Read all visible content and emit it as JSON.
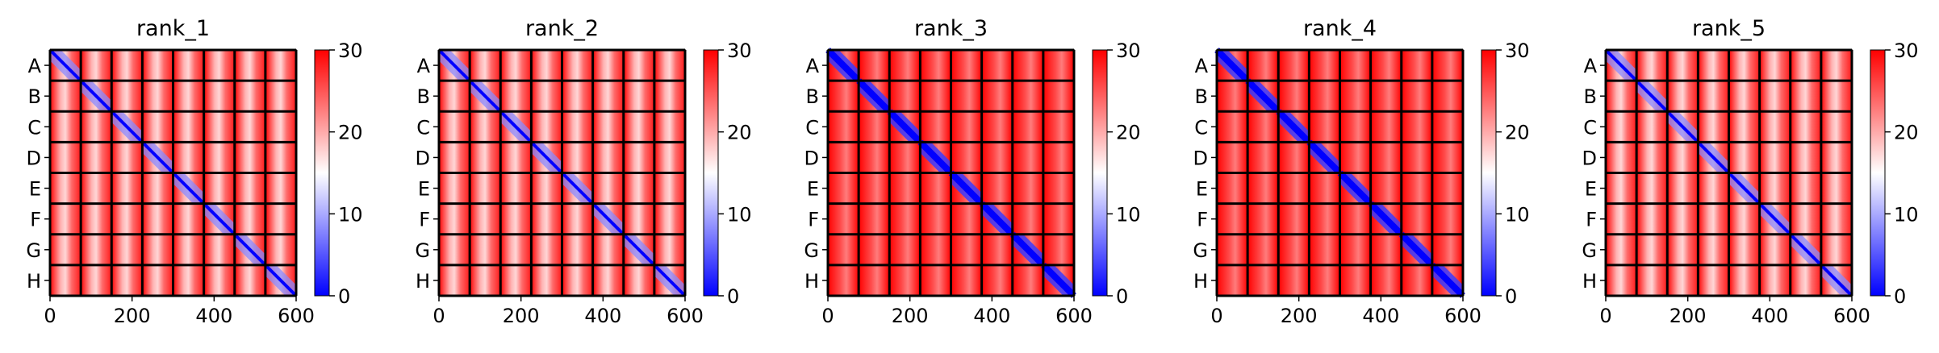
{
  "chart_data": [
    {
      "type": "heatmap",
      "title": "rank_1",
      "xticks": [
        "0",
        "200",
        "400",
        "600"
      ],
      "xlim": [
        0,
        600
      ],
      "yticks": [
        "A",
        "B",
        "C",
        "D",
        "E",
        "F",
        "G",
        "H"
      ],
      "colorbar": {
        "ticks": [
          "0",
          "10",
          "20",
          "30"
        ],
        "range": [
          0,
          30
        ],
        "colormap": "bwr"
      },
      "blocks": 8,
      "diag_strength": 0.55
    },
    {
      "type": "heatmap",
      "title": "rank_2",
      "xticks": [
        "0",
        "200",
        "400",
        "600"
      ],
      "xlim": [
        0,
        600
      ],
      "yticks": [
        "A",
        "B",
        "C",
        "D",
        "E",
        "F",
        "G",
        "H"
      ],
      "colorbar": {
        "ticks": [
          "0",
          "10",
          "20",
          "30"
        ],
        "range": [
          0,
          30
        ],
        "colormap": "bwr"
      },
      "blocks": 8,
      "diag_strength": 0.55
    },
    {
      "type": "heatmap",
      "title": "rank_3",
      "xticks": [
        "0",
        "200",
        "400",
        "600"
      ],
      "xlim": [
        0,
        600
      ],
      "yticks": [
        "A",
        "B",
        "C",
        "D",
        "E",
        "F",
        "G",
        "H"
      ],
      "colorbar": {
        "ticks": [
          "0",
          "10",
          "20",
          "30"
        ],
        "range": [
          0,
          30
        ],
        "colormap": "bwr"
      },
      "blocks": 8,
      "diag_strength": 1.0
    },
    {
      "type": "heatmap",
      "title": "rank_4",
      "xticks": [
        "0",
        "200",
        "400",
        "600"
      ],
      "xlim": [
        0,
        600
      ],
      "yticks": [
        "A",
        "B",
        "C",
        "D",
        "E",
        "F",
        "G",
        "H"
      ],
      "colorbar": {
        "ticks": [
          "0",
          "10",
          "20",
          "30"
        ],
        "range": [
          0,
          30
        ],
        "colormap": "bwr"
      },
      "blocks": 8,
      "diag_strength": 1.0
    },
    {
      "type": "heatmap",
      "title": "rank_5",
      "xticks": [
        "0",
        "200",
        "400",
        "600"
      ],
      "xlim": [
        0,
        600
      ],
      "yticks": [
        "A",
        "B",
        "C",
        "D",
        "E",
        "F",
        "G",
        "H"
      ],
      "colorbar": {
        "ticks": [
          "0",
          "10",
          "20",
          "30"
        ],
        "range": [
          0,
          30
        ],
        "colormap": "bwr"
      },
      "blocks": 8,
      "diag_strength": 0.55
    }
  ],
  "colors": {
    "high": "#ff0000",
    "mid": "#ffffff",
    "low": "#0000ff",
    "grid": "#000000"
  }
}
